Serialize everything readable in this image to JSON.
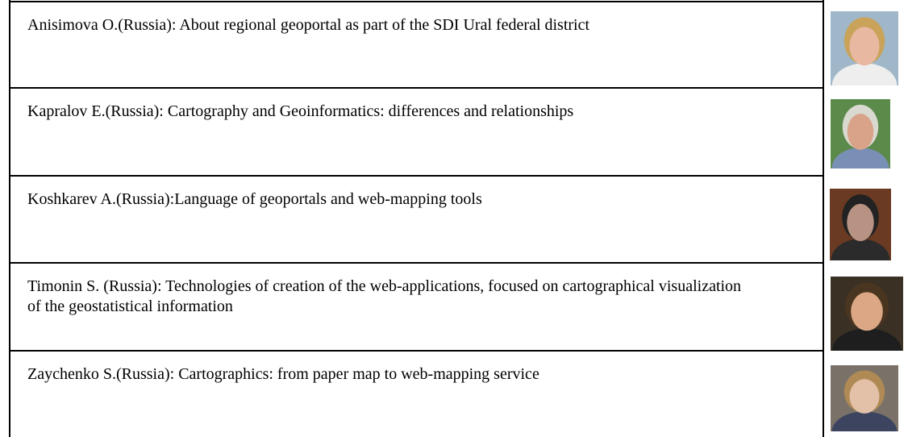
{
  "table": {
    "rows": [
      {
        "text": "Anisimova O.(Russia): About regional geoportal as part of the SDI Ural federal district"
      },
      {
        "text": "Kapralov E.(Russia): Cartography and Geoinformatics: differences and relationships"
      },
      {
        "text": "Koshkarev A.(Russia):Language of geoportals and web-mapping tools"
      },
      {
        "text": "Timonin S. (Russia): Technologies of creation of the web-applications, focused on cartographical visualization of the geostatistical information"
      },
      {
        "text": "Zaychenko S.(Russia): Cartographics: from paper map to web-mapping service"
      }
    ]
  }
}
